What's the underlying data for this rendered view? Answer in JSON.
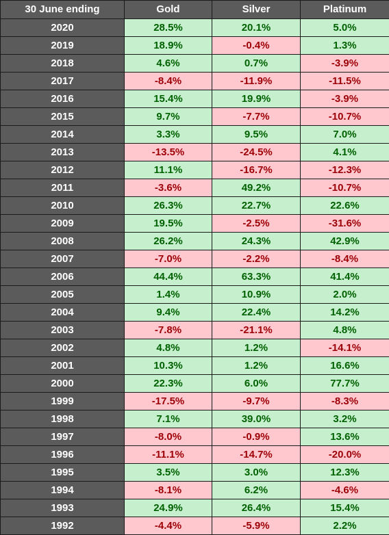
{
  "headers": [
    "30 June ending",
    "Gold",
    "Silver",
    "Platinum"
  ],
  "rows": [
    {
      "year": "2020",
      "gold": "28.5%",
      "silver": "20.1%",
      "platinum": "5.0%"
    },
    {
      "year": "2019",
      "gold": "18.9%",
      "silver": "-0.4%",
      "platinum": "1.3%"
    },
    {
      "year": "2018",
      "gold": "4.6%",
      "silver": "0.7%",
      "platinum": "-3.9%"
    },
    {
      "year": "2017",
      "gold": "-8.4%",
      "silver": "-11.9%",
      "platinum": "-11.5%"
    },
    {
      "year": "2016",
      "gold": "15.4%",
      "silver": "19.9%",
      "platinum": "-3.9%"
    },
    {
      "year": "2015",
      "gold": "9.7%",
      "silver": "-7.7%",
      "platinum": "-10.7%"
    },
    {
      "year": "2014",
      "gold": "3.3%",
      "silver": "9.5%",
      "platinum": "7.0%"
    },
    {
      "year": "2013",
      "gold": "-13.5%",
      "silver": "-24.5%",
      "platinum": "4.1%"
    },
    {
      "year": "2012",
      "gold": "11.1%",
      "silver": "-16.7%",
      "platinum": "-12.3%"
    },
    {
      "year": "2011",
      "gold": "-3.6%",
      "silver": "49.2%",
      "platinum": "-10.7%"
    },
    {
      "year": "2010",
      "gold": "26.3%",
      "silver": "22.7%",
      "platinum": "22.6%"
    },
    {
      "year": "2009",
      "gold": "19.5%",
      "silver": "-2.5%",
      "platinum": "-31.6%"
    },
    {
      "year": "2008",
      "gold": "26.2%",
      "silver": "24.3%",
      "platinum": "42.9%"
    },
    {
      "year": "2007",
      "gold": "-7.0%",
      "silver": "-2.2%",
      "platinum": "-8.4%"
    },
    {
      "year": "2006",
      "gold": "44.4%",
      "silver": "63.3%",
      "platinum": "41.4%"
    },
    {
      "year": "2005",
      "gold": "1.4%",
      "silver": "10.9%",
      "platinum": "2.0%"
    },
    {
      "year": "2004",
      "gold": "9.4%",
      "silver": "22.4%",
      "platinum": "14.2%"
    },
    {
      "year": "2003",
      "gold": "-7.8%",
      "silver": "-21.1%",
      "platinum": "4.8%"
    },
    {
      "year": "2002",
      "gold": "4.8%",
      "silver": "1.2%",
      "platinum": "-14.1%"
    },
    {
      "year": "2001",
      "gold": "10.3%",
      "silver": "1.2%",
      "platinum": "16.6%"
    },
    {
      "year": "2000",
      "gold": "22.3%",
      "silver": "6.0%",
      "platinum": "77.7%"
    },
    {
      "year": "1999",
      "gold": "-17.5%",
      "silver": "-9.7%",
      "platinum": "-8.3%"
    },
    {
      "year": "1998",
      "gold": "7.1%",
      "silver": "39.0%",
      "platinum": "3.2%"
    },
    {
      "year": "1997",
      "gold": "-8.0%",
      "silver": "-0.9%",
      "platinum": "13.6%"
    },
    {
      "year": "1996",
      "gold": "-11.1%",
      "silver": "-14.7%",
      "platinum": "-20.0%"
    },
    {
      "year": "1995",
      "gold": "3.5%",
      "silver": "3.0%",
      "platinum": "12.3%"
    },
    {
      "year": "1994",
      "gold": "-8.1%",
      "silver": "6.2%",
      "platinum": "-4.6%"
    },
    {
      "year": "1993",
      "gold": "24.9%",
      "silver": "26.4%",
      "platinum": "15.4%"
    },
    {
      "year": "1992",
      "gold": "-4.4%",
      "silver": "-5.9%",
      "platinum": "2.2%"
    }
  ],
  "colors": {
    "header_bg": "#5b5b5b",
    "header_text": "#ffffff",
    "positive_bg": "#c6efce",
    "positive_text": "#006100",
    "negative_bg": "#ffc7ce",
    "negative_text": "#9c0006",
    "border": "#1a1a1a"
  }
}
